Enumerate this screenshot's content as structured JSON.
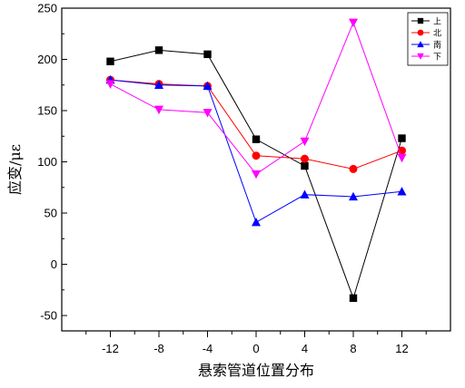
{
  "chart_data": {
    "type": "line",
    "title": "",
    "xlabel": "悬索管道位置分布",
    "ylabel": "应变/με",
    "x": [
      -12,
      -8,
      -4,
      0,
      4,
      8,
      12
    ],
    "xlim": [
      -16,
      16
    ],
    "ylim": [
      -65,
      250
    ],
    "xticks": [
      -12,
      -8,
      -4,
      0,
      4,
      8,
      12
    ],
    "yticks": [
      -50,
      0,
      50,
      100,
      150,
      200,
      250
    ],
    "grid": false,
    "legend_position": "top-right",
    "series": [
      {
        "name": "上",
        "color": "#000000",
        "marker": "square",
        "values": [
          198,
          209,
          205,
          122,
          96,
          -33,
          123
        ]
      },
      {
        "name": "北",
        "color": "#ff0000",
        "marker": "circle",
        "values": [
          180,
          176,
          174,
          106,
          103,
          93,
          111
        ]
      },
      {
        "name": "南",
        "color": "#0000ff",
        "marker": "triangle-up",
        "values": [
          180,
          175,
          174,
          41,
          68,
          66,
          71
        ]
      },
      {
        "name": "下",
        "color": "#ff00ff",
        "marker": "triangle-down",
        "values": [
          176,
          151,
          148,
          88,
          120,
          236,
          104
        ]
      }
    ]
  }
}
